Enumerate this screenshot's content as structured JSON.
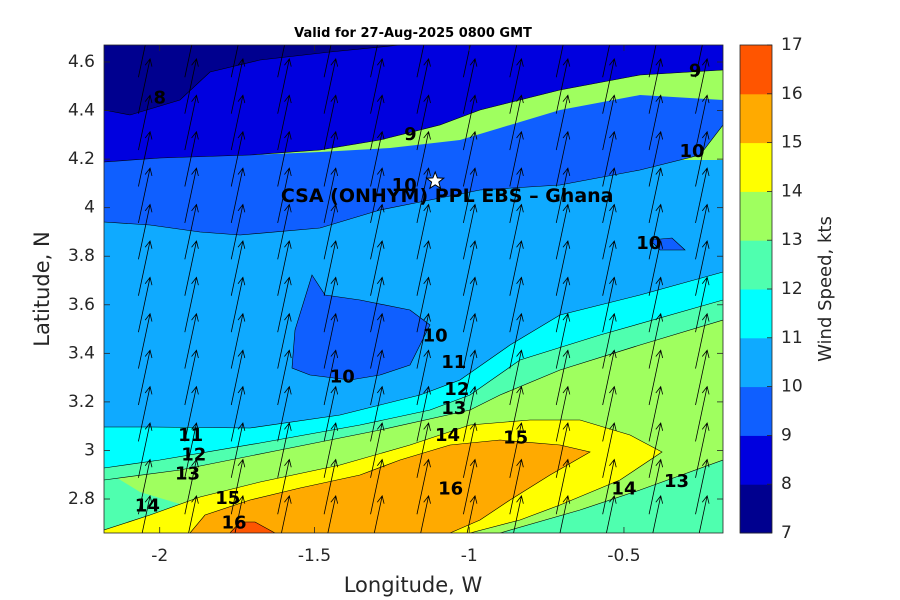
{
  "chart_data": {
    "type": "contour",
    "title": "Valid for 27-Aug-2025 0800 GMT",
    "xlabel": "Longitude, W",
    "ylabel": "Latitude, N",
    "colorbar_label": "Wind Speed, kts",
    "xlim": [
      -2.18,
      -0.18
    ],
    "ylim": [
      2.66,
      4.67
    ],
    "x_ticks": [
      "-2",
      "-1.5",
      "-1",
      "-0.5"
    ],
    "y_ticks": [
      "2.8",
      "3",
      "3.2",
      "3.4",
      "3.6",
      "3.8",
      "4",
      "4.2",
      "4.4",
      "4.6"
    ],
    "colorbar_ticks": [
      "7",
      "8",
      "9",
      "10",
      "11",
      "12",
      "13",
      "14",
      "15",
      "16",
      "17"
    ],
    "levels": [
      7,
      8,
      9,
      10,
      11,
      12,
      13,
      14,
      15,
      16,
      17
    ],
    "level_colors": [
      "#00008f",
      "#0000df",
      "#0f5fff",
      "#0faaff",
      "#00ffff",
      "#4fffaf",
      "#9fff5f",
      "#ffff00",
      "#ffaa00",
      "#ff5500"
    ],
    "contour_labels": [
      {
        "text": "8",
        "x": -2.0,
        "y": 4.45
      },
      {
        "text": "9",
        "x": -1.19,
        "y": 4.3
      },
      {
        "text": "9",
        "x": -0.27,
        "y": 4.56
      },
      {
        "text": "10",
        "x": -1.21,
        "y": 4.09
      },
      {
        "text": "10",
        "x": -0.28,
        "y": 4.23
      },
      {
        "text": "10",
        "x": -0.42,
        "y": 3.85
      },
      {
        "text": "10",
        "x": -1.11,
        "y": 3.47
      },
      {
        "text": "10",
        "x": -1.41,
        "y": 3.3
      },
      {
        "text": "11",
        "x": -1.05,
        "y": 3.36
      },
      {
        "text": "12",
        "x": -1.04,
        "y": 3.25
      },
      {
        "text": "13",
        "x": -1.05,
        "y": 3.17
      },
      {
        "text": "14",
        "x": -1.07,
        "y": 3.06
      },
      {
        "text": "15",
        "x": -0.85,
        "y": 3.05
      },
      {
        "text": "16",
        "x": -1.06,
        "y": 2.84
      },
      {
        "text": "11",
        "x": -1.9,
        "y": 3.06
      },
      {
        "text": "12",
        "x": -1.89,
        "y": 2.98
      },
      {
        "text": "13",
        "x": -1.91,
        "y": 2.9
      },
      {
        "text": "14",
        "x": -2.04,
        "y": 2.77
      },
      {
        "text": "15",
        "x": -1.78,
        "y": 2.8
      },
      {
        "text": "16",
        "x": -1.76,
        "y": 2.7
      },
      {
        "text": "14",
        "x": -0.5,
        "y": 2.84
      },
      {
        "text": "13",
        "x": -0.33,
        "y": 2.87
      }
    ],
    "station": {
      "name": "CSA (ONHYM) PPL EBS  – Ghana",
      "lon": -1.11,
      "lat": 4.11
    },
    "wind_arrows": {
      "lons": [
        -2.05,
        -1.9,
        -1.75,
        -1.6,
        -1.45,
        -1.3,
        -1.15,
        -1.0,
        -0.85,
        -0.7,
        -0.55,
        -0.4,
        -0.25
      ],
      "lats": [
        2.7,
        2.85,
        3.0,
        3.15,
        3.3,
        3.45,
        3.6,
        3.75,
        3.9,
        4.05,
        4.2,
        4.35,
        4.5,
        4.65
      ],
      "direction_deg": 12
    }
  }
}
